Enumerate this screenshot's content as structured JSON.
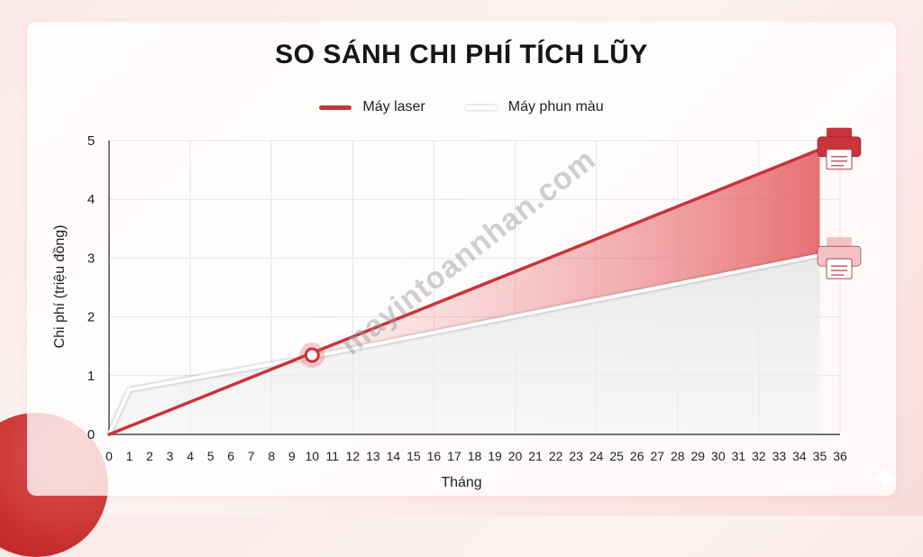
{
  "chart_data": {
    "type": "line",
    "title": "SO SÁNH CHI PHÍ TÍCH LŨY",
    "xlabel": "Tháng",
    "ylabel": "Chi phí (triệu đồng)",
    "xlim": [
      0,
      36
    ],
    "ylim": [
      0,
      5
    ],
    "x_ticks": [
      0,
      1,
      2,
      3,
      4,
      5,
      6,
      7,
      8,
      9,
      10,
      11,
      12,
      13,
      14,
      15,
      16,
      17,
      18,
      19,
      20,
      21,
      22,
      23,
      24,
      25,
      26,
      27,
      28,
      29,
      30,
      31,
      32,
      33,
      34,
      35,
      36
    ],
    "y_ticks": [
      0,
      1,
      2,
      3,
      4,
      5
    ],
    "grid": true,
    "legend_position": "top-center",
    "series": [
      {
        "name": "Máy laser",
        "color": "#c8343a",
        "x": [
          0,
          35
        ],
        "y": [
          0,
          4.85
        ]
      },
      {
        "name": "Máy phun màu",
        "color": "#ffffff",
        "x": [
          0,
          1,
          10,
          35
        ],
        "y": [
          0,
          0.76,
          1.32,
          3.05
        ]
      }
    ],
    "annotations": [
      {
        "type": "intersection-marker",
        "x": 10,
        "y": 1.35
      },
      {
        "type": "printer-icon",
        "series": "Máy laser",
        "icon": "printer-icon",
        "color": "#c8343a"
      },
      {
        "type": "printer-icon",
        "series": "Máy phun màu",
        "icon": "printer-icon",
        "color": "#f4c2c4"
      }
    ]
  },
  "watermark": "mayintoannhan.com",
  "colors": {
    "background": "#fbe9e9",
    "laser": "#c8343a",
    "inkjet": "#ffffff",
    "gap_fill": "#ea7f82",
    "grid": "#e3e3e3"
  }
}
